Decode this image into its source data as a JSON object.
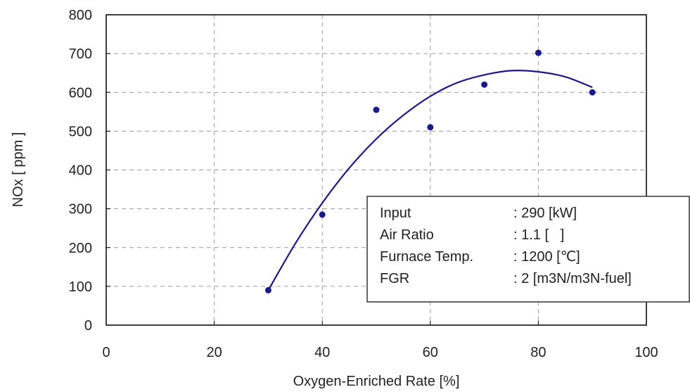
{
  "chart_data": {
    "type": "scatter",
    "xlabel": "Oxygen-Enriched Rate [%]",
    "ylabel": "NOx [ ppm ]",
    "xlim": [
      0,
      100
    ],
    "ylim": [
      0,
      800
    ],
    "x_ticks": [
      0,
      20,
      40,
      60,
      80,
      100
    ],
    "y_ticks": [
      0,
      100,
      200,
      300,
      400,
      500,
      600,
      700,
      800
    ],
    "grid": true,
    "series": [
      {
        "type": "scatter",
        "x": [
          30,
          40,
          50,
          60,
          70,
          80,
          90
        ],
        "y": [
          90,
          285,
          555,
          510,
          620,
          702,
          600
        ],
        "color": "#1a1a8c"
      },
      {
        "type": "line",
        "x": [
          30,
          35,
          40,
          45,
          50,
          55,
          60,
          65,
          70,
          75,
          80,
          85,
          90
        ],
        "y": [
          90,
          210,
          315,
          405,
          480,
          541,
          590,
          625,
          645,
          656,
          653,
          640,
          613
        ],
        "color": "#1a1a8c"
      }
    ],
    "annotation": {
      "rows": [
        {
          "label": "Input",
          "value": ": 290 [kW]"
        },
        {
          "label": "Air Ratio",
          "value": ": 1.1 [   ]"
        },
        {
          "label": "Furnace Temp.",
          "value": ": 1200 [℃]"
        },
        {
          "label": "FGR",
          "value": ": 2 [m3N/m3N-fuel]"
        }
      ]
    }
  }
}
